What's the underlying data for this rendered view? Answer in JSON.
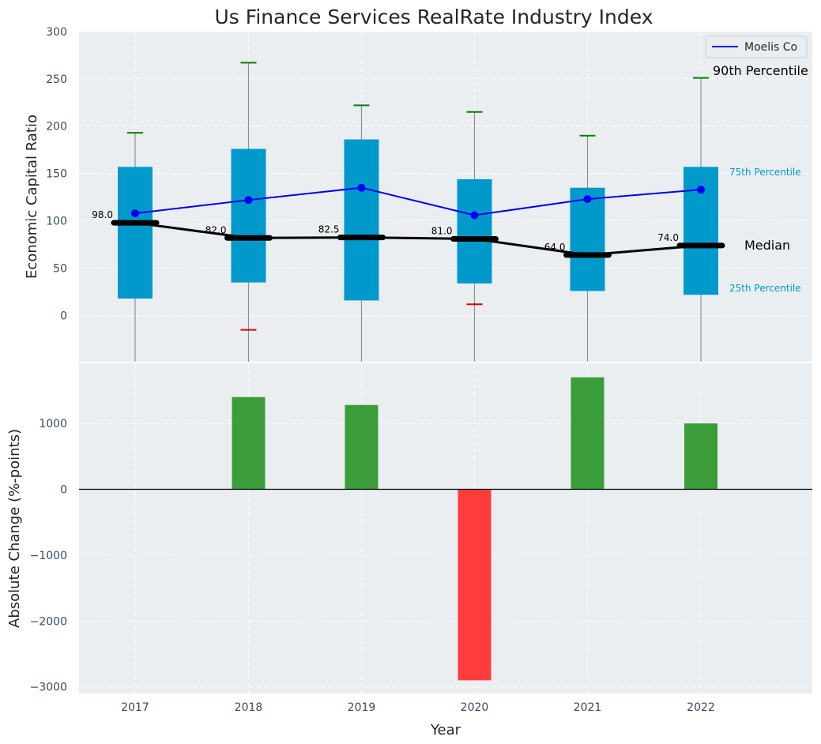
{
  "chart_data": [
    {
      "type": "box",
      "title": "Us Finance Services RealRate Industry Index",
      "ylabel": "Economic Capital Ratio",
      "categories": [
        "2017",
        "2018",
        "2019",
        "2020",
        "2021",
        "2022"
      ],
      "ylim": [
        -45,
        300
      ],
      "yticks": [
        0,
        50,
        100,
        150,
        200,
        250,
        300
      ],
      "p25": [
        18,
        35,
        16,
        34,
        26,
        22
      ],
      "p75": [
        157,
        176,
        186,
        144,
        135,
        157
      ],
      "median": [
        98.0,
        82.0,
        82.5,
        81.0,
        64.0,
        74.0
      ],
      "median_labels": [
        "98.0",
        "82.0",
        "82.5",
        "81.0",
        "64.0",
        "74.0"
      ],
      "p90": [
        193,
        267,
        222,
        215,
        190,
        251
      ],
      "p10": [
        null,
        -15,
        null,
        12,
        null,
        null
      ],
      "series": [
        {
          "name": "Moelis Co",
          "values": [
            108,
            122,
            135,
            106,
            123,
            133
          ]
        }
      ],
      "annotations": {
        "p90_label": "90th Percentile",
        "p75_label": "75th Percentile",
        "median_label": "Median",
        "p25_label": "25th Percentile"
      },
      "colors": {
        "box": "#0099cc",
        "series": "#0000ee",
        "median": "#000000",
        "p90": "#008000",
        "p10": "#dd0000"
      },
      "legend": "top-right",
      "grid": true
    },
    {
      "type": "bar",
      "xlabel": "Year",
      "ylabel": "Absolute Change (%-points)",
      "categories": [
        "2017",
        "2018",
        "2019",
        "2020",
        "2021",
        "2022"
      ],
      "values": [
        0,
        1400,
        1280,
        -2900,
        1700,
        1000
      ],
      "ylim": [
        -3100,
        1900
      ],
      "yticks": [
        -3000,
        -2000,
        -1000,
        0,
        1000
      ],
      "colors": {
        "positive": "#3a9d3a",
        "negative": "#ff3c3c"
      },
      "grid": true
    }
  ]
}
